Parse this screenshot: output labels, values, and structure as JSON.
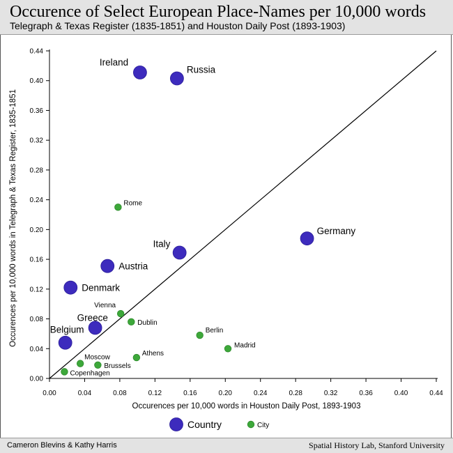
{
  "header": {
    "title": "Occurence of Select European Place-Names per 10,000 words",
    "subtitle": "Telegraph & Texas Register (1835-1851) and Houston Daily Post (1893-1903)"
  },
  "footer": {
    "credit_left": "Cameron Blevins & Kathy Harris",
    "credit_right": "Spatial History Lab, Stanford University"
  },
  "chart_data": {
    "type": "scatter",
    "xlabel": "Occurences per 10,000 words in Houston Daily Post, 1893-1903",
    "ylabel": "Occurences per 10,000 words in Telegraph & Texas Register, 1835-1851",
    "xlim": [
      0,
      0.44
    ],
    "ylim": [
      0,
      0.44
    ],
    "x_ticks": [
      "0.00",
      "0.04",
      "0.08",
      "0.12",
      "0.16",
      "0.20",
      "0.24",
      "0.28",
      "0.32",
      "0.36",
      "0.40",
      "0.44"
    ],
    "y_ticks": [
      "0.00",
      "0.04",
      "0.08",
      "0.12",
      "0.16",
      "0.20",
      "0.24",
      "0.28",
      "0.32",
      "0.36",
      "0.40",
      "0.44"
    ],
    "reference_line": "y = x",
    "grid": false,
    "colors": {
      "country": "#3d2bbd",
      "city": "#3da83a"
    },
    "legend": [
      {
        "name": "Country",
        "type": "country"
      },
      {
        "name": "City",
        "type": "city"
      }
    ],
    "points": [
      {
        "name": "Ireland",
        "type": "country",
        "x": 0.103,
        "y": 0.411
      },
      {
        "name": "Russia",
        "type": "country",
        "x": 0.145,
        "y": 0.403
      },
      {
        "name": "Germany",
        "type": "country",
        "x": 0.293,
        "y": 0.188
      },
      {
        "name": "Italy",
        "type": "country",
        "x": 0.148,
        "y": 0.169
      },
      {
        "name": "Austria",
        "type": "country",
        "x": 0.066,
        "y": 0.151
      },
      {
        "name": "Denmark",
        "type": "country",
        "x": 0.024,
        "y": 0.122
      },
      {
        "name": "Greece",
        "type": "country",
        "x": 0.052,
        "y": 0.068
      },
      {
        "name": "Belgium",
        "type": "country",
        "x": 0.018,
        "y": 0.048
      },
      {
        "name": "Rome",
        "type": "city",
        "x": 0.078,
        "y": 0.23
      },
      {
        "name": "Vienna",
        "type": "city",
        "x": 0.081,
        "y": 0.087
      },
      {
        "name": "Dublin",
        "type": "city",
        "x": 0.093,
        "y": 0.076
      },
      {
        "name": "Berlin",
        "type": "city",
        "x": 0.171,
        "y": 0.058
      },
      {
        "name": "Madrid",
        "type": "city",
        "x": 0.203,
        "y": 0.04
      },
      {
        "name": "Athens",
        "type": "city",
        "x": 0.099,
        "y": 0.028
      },
      {
        "name": "Moscow",
        "type": "city",
        "x": 0.035,
        "y": 0.02
      },
      {
        "name": "Brussels",
        "type": "city",
        "x": 0.055,
        "y": 0.018
      },
      {
        "name": "Copenhagen",
        "type": "city",
        "x": 0.017,
        "y": 0.009
      }
    ]
  }
}
